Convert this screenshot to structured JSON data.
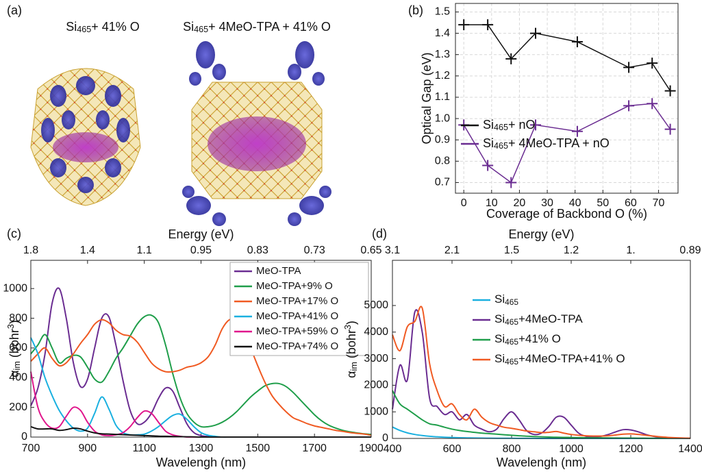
{
  "figure_a": {
    "label": "(a)",
    "titles": [
      [
        "Si",
        {
          "sub": "465"
        },
        "+ 41% O"
      ],
      [
        "Si",
        {
          "sub": "465"
        },
        "+ 4MeO-TPA + 41% O"
      ]
    ]
  },
  "chart_data": [
    {
      "type": "line",
      "label": "(b)",
      "xlabel": "Coverage of Backbond O (%)",
      "ylabel": "Optical Gap (eV)",
      "x": [
        0,
        8.6,
        17,
        25.8,
        40.8,
        59.3,
        67.7,
        74.2
      ],
      "series": [
        {
          "name": [
            "Si",
            {
              "sub": "465"
            },
            "+ nO"
          ],
          "color": "#111111",
          "values": [
            1.44,
            1.44,
            1.28,
            1.4,
            1.36,
            1.24,
            1.26,
            1.13
          ]
        },
        {
          "name": [
            "Si",
            {
              "sub": "465"
            },
            "+ 4MeO-TPA + nO"
          ],
          "color": "#6a2c91",
          "values": [
            0.97,
            0.78,
            0.7,
            0.97,
            0.94,
            1.06,
            1.07,
            0.95
          ]
        }
      ],
      "marker": "+",
      "grid": true,
      "legend": "center-left",
      "xlim": [
        -3,
        77
      ],
      "xticks": [
        0,
        10,
        20,
        30,
        40,
        50,
        60,
        70
      ],
      "ylim": [
        0.65,
        1.54
      ],
      "yticks": [
        0.7,
        0.8,
        0.9,
        {
          "value": 1,
          "label": "1.0"
        },
        1.1,
        1.2,
        1.3,
        1.4,
        1.5
      ]
    },
    {
      "type": "line",
      "label": "(c)",
      "xlabel": "Wavelengh (nm)",
      "ylabel": [
        "α",
        {
          "sub": "im"
        },
        " (bohr",
        {
          "sup": "3"
        },
        ")"
      ],
      "x2label": "Energy (eV)",
      "x": [
        700,
        725,
        750,
        775,
        800,
        825,
        850,
        875,
        900,
        925,
        950,
        975,
        1000,
        1025,
        1050,
        1075,
        1100,
        1125,
        1150,
        1175,
        1200,
        1225,
        1250,
        1275,
        1300,
        1325,
        1350,
        1375,
        1400,
        1425,
        1450,
        1475,
        1500,
        1525,
        1550,
        1575,
        1600,
        1625,
        1650,
        1675,
        1700,
        1725,
        1750,
        1775,
        1800,
        1825,
        1850,
        1875,
        1900
      ],
      "series": [
        {
          "name": "MeO-TPA",
          "color": "#6a2c91",
          "values": [
            210,
            330,
            560,
            900,
            1000,
            800,
            500,
            340,
            390,
            600,
            800,
            810,
            620,
            380,
            180,
            90,
            100,
            160,
            260,
            330,
            310,
            200,
            90,
            30,
            10,
            3,
            0,
            0,
            0,
            0,
            0,
            0,
            0,
            0,
            0,
            0,
            0,
            0,
            0,
            0,
            0,
            0,
            0,
            0,
            0,
            0,
            0,
            0,
            0
          ]
        },
        {
          "name": "MeO-TPA+9% O",
          "color": "#1f9e4a",
          "values": [
            560,
            620,
            690,
            600,
            500,
            530,
            550,
            540,
            470,
            390,
            370,
            440,
            530,
            600,
            680,
            760,
            810,
            820,
            770,
            620,
            430,
            270,
            160,
            100,
            70,
            70,
            80,
            100,
            130,
            170,
            220,
            270,
            310,
            345,
            360,
            360,
            340,
            300,
            250,
            200,
            150,
            110,
            80,
            60,
            45,
            35,
            28,
            22,
            18
          ]
        },
        {
          "name": "MeO-TPA+17% O",
          "color": "#f05a22",
          "values": [
            510,
            560,
            600,
            530,
            480,
            500,
            560,
            630,
            690,
            760,
            790,
            770,
            720,
            690,
            680,
            640,
            570,
            500,
            460,
            440,
            440,
            450,
            470,
            480,
            500,
            540,
            620,
            730,
            790,
            790,
            720,
            600,
            480,
            370,
            280,
            220,
            170,
            130,
            110,
            90,
            75,
            65,
            55,
            45,
            38,
            30,
            25,
            20,
            12
          ]
        },
        {
          "name": "MeO-TPA+41% O",
          "color": "#1ab0e0",
          "values": [
            670,
            560,
            400,
            280,
            180,
            110,
            60,
            40,
            60,
            160,
            270,
            190,
            80,
            30,
            15,
            15,
            20,
            40,
            70,
            110,
            145,
            155,
            120,
            70,
            30,
            12,
            5,
            0,
            0,
            0,
            0,
            0,
            0,
            0,
            0,
            0,
            0,
            0,
            0,
            0,
            0,
            0,
            0,
            0,
            0,
            0,
            0,
            0,
            0
          ]
        },
        {
          "name": "MeO-TPA+59% O",
          "color": "#e0168c",
          "values": [
            440,
            200,
            100,
            60,
            70,
            140,
            200,
            180,
            100,
            40,
            15,
            10,
            15,
            30,
            70,
            130,
            175,
            160,
            100,
            40,
            15,
            5,
            0,
            0,
            0,
            0,
            0,
            0,
            0,
            0,
            0,
            0,
            0,
            0,
            0,
            0,
            0,
            0,
            0,
            0,
            0,
            0,
            0,
            0,
            0,
            0,
            0,
            0,
            0
          ]
        },
        {
          "name": "MeO-TPA+74% O",
          "color": "#111111",
          "values": [
            70,
            55,
            55,
            55,
            45,
            50,
            60,
            55,
            40,
            28,
            22,
            20,
            18,
            16,
            14,
            12,
            10,
            8,
            6,
            5,
            4,
            3,
            2,
            1,
            0,
            0,
            0,
            0,
            0,
            0,
            0,
            0,
            0,
            0,
            0,
            0,
            0,
            0,
            0,
            0,
            0,
            0,
            0,
            0,
            0,
            0,
            0,
            0,
            0
          ]
        }
      ],
      "grid": false,
      "legend": "upper-right",
      "legend_frame": true,
      "xlim": [
        700,
        1900
      ],
      "xticks": [
        700,
        900,
        1100,
        1300,
        1500,
        1700,
        1900
      ],
      "x2ticks": [
        {
          "value": 700,
          "label": "1.8"
        },
        {
          "value": 900,
          "label": "1.4"
        },
        {
          "value": 1100,
          "label": "1.1"
        },
        {
          "value": 1300,
          "label": "0.95"
        },
        {
          "value": 1500,
          "label": "0.83"
        },
        {
          "value": 1700,
          "label": "0.73"
        },
        {
          "value": 1900,
          "label": "0.65"
        }
      ],
      "ylim": [
        0,
        1190
      ],
      "yticks": [
        0,
        200,
        400,
        600,
        800,
        1000
      ]
    },
    {
      "type": "line",
      "label": "(d)",
      "xlabel": "Wavelengh (nm)",
      "ylabel": [
        "α",
        {
          "sub": "im"
        },
        " (bohr",
        {
          "sup": "3"
        },
        ")"
      ],
      "x2label": "Energy (eV)",
      "x": [
        400,
        425,
        450,
        475,
        500,
        525,
        550,
        575,
        600,
        625,
        650,
        675,
        700,
        725,
        750,
        775,
        800,
        825,
        850,
        875,
        900,
        925,
        950,
        975,
        1000,
        1025,
        1050,
        1075,
        1100,
        1125,
        1150,
        1175,
        1200,
        1225,
        1250,
        1275,
        1300,
        1325,
        1350,
        1375,
        1400
      ],
      "series": [
        {
          "name": [
            "Si",
            {
              "sub": "465"
            }
          ],
          "color": "#1ab0e0",
          "values": [
            430,
            300,
            210,
            150,
            110,
            80,
            60,
            45,
            35,
            25,
            20,
            15,
            12,
            10,
            8,
            6,
            5,
            4,
            3,
            2,
            0,
            0,
            0,
            0,
            0,
            0,
            0,
            0,
            0,
            0,
            0,
            0,
            0,
            0,
            0,
            0,
            0,
            0,
            0,
            0,
            0
          ]
        },
        {
          "name": [
            "Si",
            {
              "sub": "465"
            },
            "+4MeO-TPA"
          ],
          "color": "#6a2c91",
          "values": [
            1100,
            2750,
            2200,
            4750,
            4000,
            1500,
            1200,
            900,
            1000,
            700,
            900,
            500,
            350,
            250,
            350,
            750,
            1000,
            700,
            300,
            150,
            200,
            450,
            800,
            800,
            500,
            200,
            80,
            60,
            80,
            150,
            250,
            330,
            320,
            250,
            150,
            80,
            40,
            20,
            10,
            5,
            0
          ]
        },
        {
          "name": [
            "Si",
            {
              "sub": "465"
            },
            "+41% O"
          ],
          "color": "#1f9e4a",
          "values": [
            1800,
            1300,
            1100,
            900,
            700,
            550,
            500,
            420,
            350,
            300,
            260,
            230,
            200,
            180,
            160,
            140,
            120,
            100,
            85,
            70,
            60,
            50,
            45,
            40,
            35,
            30,
            27,
            24,
            21,
            18,
            16,
            14,
            12,
            10,
            9,
            8,
            7,
            6,
            5,
            5,
            5
          ]
        },
        {
          "name": [
            "Si",
            {
              "sub": "465"
            },
            "+4MeO-TPA+41% O"
          ],
          "color": "#f05a22",
          "values": [
            3900,
            3300,
            4200,
            4400,
            4900,
            2800,
            1800,
            1200,
            1300,
            900,
            700,
            1100,
            800,
            600,
            500,
            420,
            380,
            330,
            280,
            250,
            220,
            230,
            260,
            200,
            150,
            120,
            100,
            90,
            90,
            100,
            130,
            160,
            170,
            150,
            120,
            90,
            60,
            40,
            25,
            15,
            10
          ]
        }
      ],
      "grid": false,
      "legend": "upper-center",
      "xlim": [
        400,
        1400
      ],
      "xticks": [
        400,
        600,
        800,
        1000,
        1200,
        1400
      ],
      "x2ticks": [
        {
          "value": 400,
          "label": "3.1"
        },
        {
          "value": 600,
          "label": "2.1"
        },
        {
          "value": 800,
          "label": "1.5"
        },
        {
          "value": 1000,
          "label": "1.2"
        },
        {
          "value": 1200,
          "label": "1."
        },
        {
          "value": 1400,
          "label": "0.89"
        }
      ],
      "ylim": [
        0,
        6700
      ],
      "yticks": [
        0,
        1000,
        2000,
        3000,
        4000,
        5000
      ]
    }
  ]
}
